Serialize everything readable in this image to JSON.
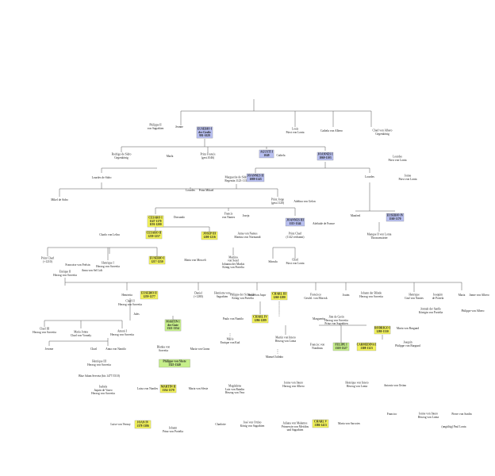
{
  "nodes": [
    {
      "lines": [
        "Philippe II",
        "von Sagrabien"
      ]
    },
    {
      "lines": [
        "Jeanne"
      ]
    },
    {
      "lines": [
        "EUSEBIO I",
        "der Große",
        "991-1029"
      ],
      "mark": "#b8bff0"
    },
    {
      "lines": [
        "Louis",
        "Fürst von Lonta"
      ]
    },
    {
      "lines": [
        "Cathela von Albero"
      ]
    },
    {
      "lines": [
        "Charl von Albero",
        "Gegenkönig"
      ]
    },
    {
      "lines": [
        "Rodrigo de Sidro",
        "Gegenkönig"
      ]
    },
    {
      "lines": [
        "Marla"
      ]
    },
    {
      "lines": [
        "Prinz Francis",
        "(gest.1046)"
      ]
    },
    {
      "lines": [
        "AGUSTI I",
        "1049"
      ],
      "mark": "#b8bff0"
    },
    {
      "lines": [
        "Cathela"
      ]
    },
    {
      "lines": [
        "JOANNES I",
        "1069-1103"
      ],
      "mark": "#b8bff0"
    },
    {
      "lines": [
        "Lourdes",
        "Fürst von Lonta"
      ]
    },
    {
      "lines": [
        "Lourdes de Sidro"
      ]
    },
    {
      "lines": [
        "Marguerite de Sidro",
        "Regentin 1123-1137"
      ]
    },
    {
      "lines": [
        "JOANNES II",
        "1089-1143"
      ],
      "mark": "#b8bff0"
    },
    {
      "lines": [
        "Lourdes"
      ]
    },
    {
      "lines": [
        "Jonne",
        "Fürst von Lonta"
      ]
    },
    {
      "lines": [
        "Mikel de Sidro"
      ]
    },
    {
      "lines": [
        "Lourdes"
      ]
    },
    {
      "lines": [
        "Prinz Mikael"
      ]
    },
    {
      "lines": [
        "Prinz Jorge",
        "(gest.1120)"
      ]
    },
    {
      "lines": [
        "Adelina von Gelon"
      ]
    },
    {
      "lines": [
        "CESARO I",
        "1147-1170",
        "1191-1200"
      ],
      "mark": "#f2f25a"
    },
    {
      "lines": [
        "Dorsando"
      ]
    },
    {
      "lines": [
        "Francis",
        "von Nantes"
      ]
    },
    {
      "lines": [
        "Joseja"
      ]
    },
    {
      "lines": [
        "JOANNES III",
        "1115-1144"
      ],
      "mark": "#b8bff0"
    },
    {
      "lines": [
        "Adelaide de France"
      ]
    },
    {
      "lines": [
        "Manfred"
      ]
    },
    {
      "lines": [
        "EUSEBIO IV",
        "1160-1170"
      ],
      "mark": "#b8bff0"
    },
    {
      "lines": [
        "Charlo von Leltra"
      ]
    },
    {
      "lines": [
        "CESARO II",
        "1239-1257"
      ],
      "mark": "#f2f25a"
    },
    {
      "lines": [
        "JOSEP III",
        "1200-1216"
      ],
      "mark": "#f2f25a"
    },
    {
      "lines": [
        "Anna von Nantes",
        "Martina von Normandi"
      ]
    },
    {
      "lines": [
        "Prinz Charl",
        "(1142 verbannt)"
      ]
    },
    {
      "lines": [
        "Manque II von Lonta",
        "Thronanwärter"
      ]
    },
    {
      "lines": [
        "Prinz Charl",
        "(+1210)"
      ]
    },
    {
      "lines": [
        "Francoise von Frelsin"
      ]
    },
    {
      "lines": [
        "Henrique I",
        "Herzog von Sorveita"
      ]
    },
    {
      "lines": [
        "EUSEBIO I",
        "1217-1250"
      ],
      "mark": "#f2f25a"
    },
    {
      "lines": [
        "Maria von Mosceli"
      ]
    },
    {
      "lines": [
        "Martina",
        "von Sezel",
        "Johanna der Markis",
        "König von Portelia"
      ]
    },
    {
      "lines": [
        "Sibruda"
      ]
    },
    {
      "lines": [
        "Charl",
        "Fürst von Lonta"
      ]
    },
    {
      "lines": [
        "Enrique II",
        "Herzog von Sorveita"
      ]
    },
    {
      "lines": [
        "Anna von Sel Lidt"
      ]
    },
    {
      "lines": [
        "Henrietta"
      ]
    },
    {
      "lines": [
        "EUSEBIO II",
        "1259-1277"
      ],
      "mark": "#f2f25a"
    },
    {
      "lines": [
        "Daniel",
        "(+1280)"
      ]
    },
    {
      "lines": [
        "Henrietta von",
        "Sagrabien"
      ]
    },
    {
      "lines": [
        "Philippe der Schneider",
        "König von Portelia"
      ]
    },
    {
      "lines": [
        "Anna von Jaqor"
      ]
    },
    {
      "lines": [
        "CHARL III",
        "1260-1280"
      ],
      "mark": "#f2f25a"
    },
    {
      "lines": [
        "Francisco",
        "Geschl. von Morosk"
      ]
    },
    {
      "lines": [
        "Jouim"
      ]
    },
    {
      "lines": [
        "Johann der Blinde",
        "Herzog von Sorveita"
      ]
    },
    {
      "lines": [
        "Henrique",
        "Graf von Nantes"
      ]
    },
    {
      "lines": [
        "Joaquim",
        "de Portela"
      ]
    },
    {
      "lines": [
        "Maria"
      ]
    },
    {
      "lines": [
        "Jonne von Albero"
      ]
    },
    {
      "lines": [
        "Jonnah der Sanfle",
        "Königin von Portelia"
      ]
    },
    {
      "lines": [
        "Philippe von Albero"
      ]
    },
    {
      "lines": [
        "Charl II",
        "Herzog von Sorveita"
      ]
    },
    {
      "lines": [
        "Jules"
      ]
    },
    {
      "lines": [
        "CHARL IV",
        "1286-1289"
      ],
      "mark": "#f2f25a"
    },
    {
      "lines": [
        "Paulo von Nantilo"
      ]
    },
    {
      "lines": [
        "Marguerite"
      ]
    },
    {
      "lines": [
        "Jinn de Gerin",
        "Herzog von Sorveita",
        "Prinz von Sagrabien"
      ]
    },
    {
      "lines": [
        "RODRIGO I",
        "1280-1330"
      ],
      "mark": "#f2f25a"
    },
    {
      "lines": [
        "Maria von Burgund"
      ]
    },
    {
      "lines": [
        "Charl III",
        "Herzog von Sorveita"
      ]
    },
    {
      "lines": [
        "Maria Jonna",
        "Charl von Voranly"
      ]
    },
    {
      "lines": [
        "Antoni I",
        "Herzog von Sorveita"
      ]
    },
    {
      "lines": [
        "MARTIN I",
        "der Gute",
        "1321-1354"
      ],
      "mark": "#c6ef8a"
    },
    {
      "lines": [
        "Mario",
        "Enrique von Kad"
      ]
    },
    {
      "lines": [
        "Martin von Intero",
        "Herzog von Lonta"
      ]
    },
    {
      "lines": [
        "Francisc von",
        "Nondinas"
      ]
    },
    {
      "lines": [
        "FELIPE I",
        "1318-1327"
      ],
      "mark": "#c6ef8a"
    },
    {
      "lines": [
        "CARMEDINA I",
        "1308-1323"
      ],
      "mark": "#f2f25a"
    },
    {
      "lines": [
        "Joaquin",
        "Philippe von Burgund"
      ]
    },
    {
      "lines": [
        "Jerome"
      ]
    },
    {
      "lines": [
        "Charl"
      ]
    },
    {
      "lines": [
        "Anna von Nantilo"
      ]
    },
    {
      "lines": [
        "Blanka von",
        "Sorveita"
      ]
    },
    {
      "lines": [
        "Maria von Granz"
      ]
    },
    {
      "lines": [
        "Philippe von Sfeste",
        "1325-1340"
      ],
      "mark": "#c6ef8a"
    },
    {
      "lines": [
        "Manuel Jalinho"
      ]
    },
    {
      "lines": [
        "Henrique III",
        "Herzog von Sorveita"
      ]
    },
    {
      "lines": [
        "Blue Adam Serveta (bis 1477/1510)"
      ]
    },
    {
      "lines": [
        "Isabela",
        "Jaquin de Vaseo",
        "Herzog von Sorveita"
      ]
    },
    {
      "lines": [
        "Luisa von Nantles"
      ]
    },
    {
      "lines": [
        "MARTIN II",
        "1354-1378"
      ],
      "mark": "#f2f25a"
    },
    {
      "lines": [
        "Maria von Sfeste"
      ]
    },
    {
      "lines": [
        "Magdalena",
        "Luis von Rainlin",
        "Herzog von Vera"
      ]
    },
    {
      "lines": [
        "Jonne von Intero",
        "Herzog von Albero"
      ]
    },
    {
      "lines": [
        "Henrique von Intero",
        "Herzog von Lonta"
      ]
    },
    {
      "lines": [
        "Antonio von Ortino"
      ]
    },
    {
      "lines": [
        "Luise von Vernay"
      ]
    },
    {
      "lines": [
        "JOAN IV",
        "1378-1386"
      ],
      "mark": "#f2f25a"
    },
    {
      "lines": [
        "Johann",
        "Prinz von Portelia"
      ]
    },
    {
      "lines": [
        "Charlotte"
      ]
    },
    {
      "lines": [
        "José von Ortino",
        "König von Sagrabien"
      ]
    },
    {
      "lines": [
        "Juliana von Malantos",
        "Prinzessin von Meitilou",
        "und Sagrabien"
      ]
    },
    {
      "lines": [
        "CHARL V",
        "1386-1413"
      ],
      "mark": "#f2f25a"
    },
    {
      "lines": [
        "Maria von Sarcotes"
      ]
    },
    {
      "lines": [
        "Francico"
      ]
    },
    {
      "lines": [
        "Jonne von Intero",
        "Herzog von Lonta"
      ]
    },
    {
      "lines": [
        "Pierre von Sardin"
      ]
    },
    {
      "lines": [
        "(ungültig) Paul Lonta"
      ]
    }
  ]
}
